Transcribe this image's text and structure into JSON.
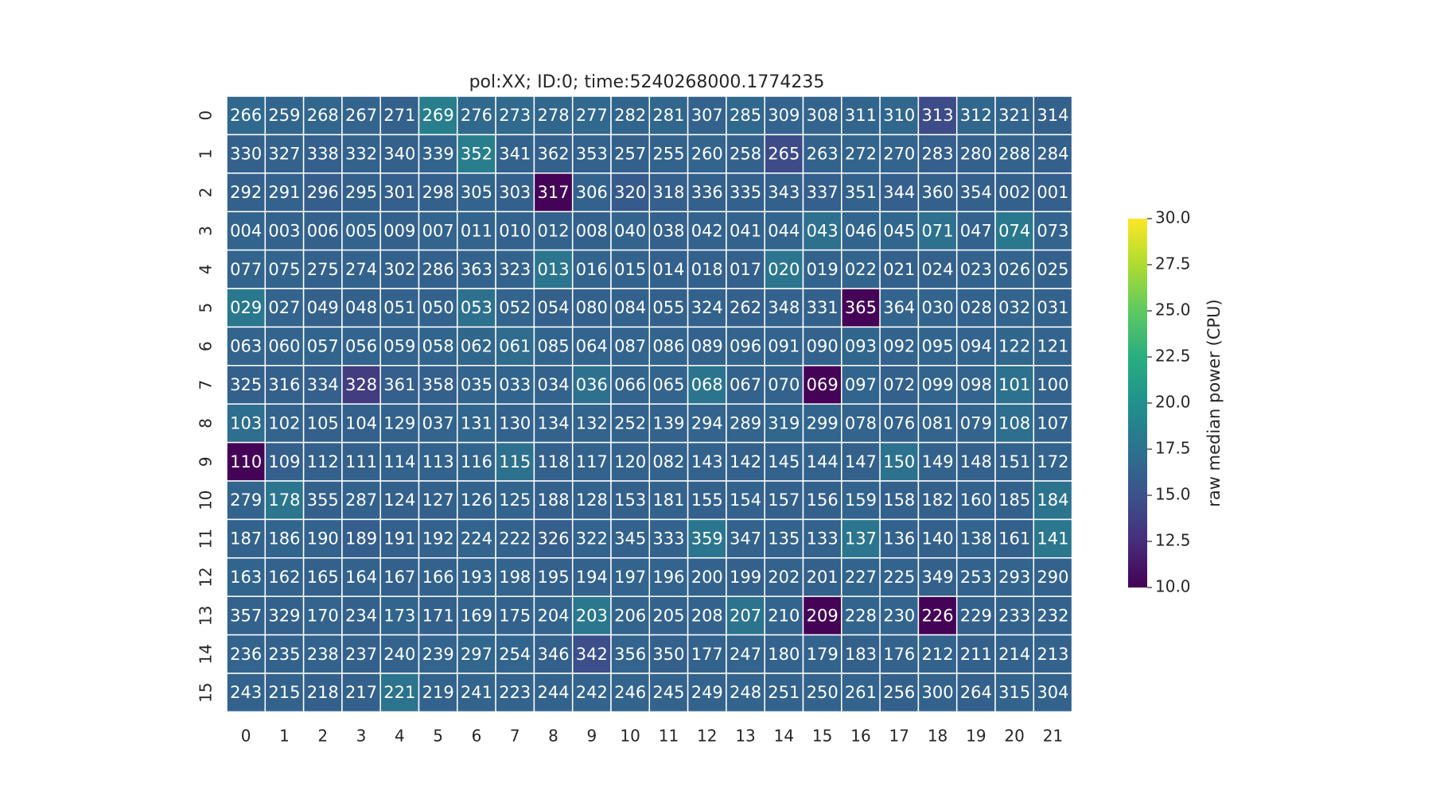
{
  "chart_data": {
    "type": "heatmap",
    "title": "pol:XX; ID:0; time:5240268000.1774235",
    "xlabel": "",
    "ylabel": "",
    "x_ticks": [
      "0",
      "1",
      "2",
      "3",
      "4",
      "5",
      "6",
      "7",
      "8",
      "9",
      "10",
      "11",
      "12",
      "13",
      "14",
      "15",
      "16",
      "17",
      "18",
      "19",
      "20",
      "21"
    ],
    "y_ticks": [
      "0",
      "1",
      "2",
      "3",
      "4",
      "5",
      "6",
      "7",
      "8",
      "9",
      "10",
      "11",
      "12",
      "13",
      "14",
      "15"
    ],
    "annotations": [
      [
        "266",
        "259",
        "268",
        "267",
        "271",
        "269",
        "276",
        "273",
        "278",
        "277",
        "282",
        "281",
        "307",
        "285",
        "309",
        "308",
        "311",
        "310",
        "313",
        "312",
        "321",
        "314"
      ],
      [
        "330",
        "327",
        "338",
        "332",
        "340",
        "339",
        "352",
        "341",
        "362",
        "353",
        "257",
        "255",
        "260",
        "258",
        "265",
        "263",
        "272",
        "270",
        "283",
        "280",
        "288",
        "284"
      ],
      [
        "292",
        "291",
        "296",
        "295",
        "301",
        "298",
        "305",
        "303",
        "317",
        "306",
        "320",
        "318",
        "336",
        "335",
        "343",
        "337",
        "351",
        "344",
        "360",
        "354",
        "002",
        "001"
      ],
      [
        "004",
        "003",
        "006",
        "005",
        "009",
        "007",
        "011",
        "010",
        "012",
        "008",
        "040",
        "038",
        "042",
        "041",
        "044",
        "043",
        "046",
        "045",
        "071",
        "047",
        "074",
        "073"
      ],
      [
        "077",
        "075",
        "275",
        "274",
        "302",
        "286",
        "363",
        "323",
        "013",
        "016",
        "015",
        "014",
        "018",
        "017",
        "020",
        "019",
        "022",
        "021",
        "024",
        "023",
        "026",
        "025"
      ],
      [
        "029",
        "027",
        "049",
        "048",
        "051",
        "050",
        "053",
        "052",
        "054",
        "080",
        "084",
        "055",
        "324",
        "262",
        "348",
        "331",
        "365",
        "364",
        "030",
        "028",
        "032",
        "031"
      ],
      [
        "063",
        "060",
        "057",
        "056",
        "059",
        "058",
        "062",
        "061",
        "085",
        "064",
        "087",
        "086",
        "089",
        "096",
        "091",
        "090",
        "093",
        "092",
        "095",
        "094",
        "122",
        "121"
      ],
      [
        "325",
        "316",
        "334",
        "328",
        "361",
        "358",
        "035",
        "033",
        "034",
        "036",
        "066",
        "065",
        "068",
        "067",
        "070",
        "069",
        "097",
        "072",
        "099",
        "098",
        "101",
        "100"
      ],
      [
        "103",
        "102",
        "105",
        "104",
        "129",
        "037",
        "131",
        "130",
        "134",
        "132",
        "252",
        "139",
        "294",
        "289",
        "319",
        "299",
        "078",
        "076",
        "081",
        "079",
        "108",
        "107"
      ],
      [
        "110",
        "109",
        "112",
        "111",
        "114",
        "113",
        "116",
        "115",
        "118",
        "117",
        "120",
        "082",
        "143",
        "142",
        "145",
        "144",
        "147",
        "150",
        "149",
        "148",
        "151",
        "172"
      ],
      [
        "279",
        "178",
        "355",
        "287",
        "124",
        "127",
        "126",
        "125",
        "188",
        "128",
        "153",
        "181",
        "155",
        "154",
        "157",
        "156",
        "159",
        "158",
        "182",
        "160",
        "185",
        "184"
      ],
      [
        "187",
        "186",
        "190",
        "189",
        "191",
        "192",
        "224",
        "222",
        "326",
        "322",
        "345",
        "333",
        "359",
        "347",
        "135",
        "133",
        "137",
        "136",
        "140",
        "138",
        "161",
        "141"
      ],
      [
        "163",
        "162",
        "165",
        "164",
        "167",
        "166",
        "193",
        "198",
        "195",
        "194",
        "197",
        "196",
        "200",
        "199",
        "202",
        "201",
        "227",
        "225",
        "349",
        "253",
        "293",
        "290"
      ],
      [
        "357",
        "329",
        "170",
        "234",
        "173",
        "171",
        "169",
        "175",
        "204",
        "203",
        "206",
        "205",
        "208",
        "207",
        "210",
        "209",
        "228",
        "230",
        "226",
        "229",
        "233",
        "232"
      ],
      [
        "236",
        "235",
        "238",
        "237",
        "240",
        "239",
        "297",
        "254",
        "346",
        "342",
        "356",
        "350",
        "177",
        "247",
        "180",
        "179",
        "183",
        "176",
        "212",
        "211",
        "214",
        "213"
      ],
      [
        "243",
        "215",
        "218",
        "217",
        "221",
        "219",
        "241",
        "223",
        "244",
        "242",
        "246",
        "245",
        "249",
        "248",
        "251",
        "250",
        "261",
        "256",
        "300",
        "264",
        "315",
        "304"
      ]
    ],
    "values": [
      [
        16.8,
        16.5,
        16.6,
        16.4,
        16.2,
        18.5,
        16.7,
        16.9,
        16.6,
        16.7,
        16.5,
        16.6,
        16.3,
        16.7,
        16.4,
        16.4,
        16.5,
        16.6,
        14.5,
        16.6,
        16.4,
        16.2
      ],
      [
        16.2,
        16.3,
        16.0,
        16.3,
        16.1,
        16.4,
        18.5,
        16.3,
        16.1,
        16.3,
        16.2,
        16.3,
        16.4,
        16.2,
        14.5,
        16.3,
        16.5,
        16.4,
        16.0,
        16.2,
        16.3,
        16.1
      ],
      [
        16.2,
        16.3,
        15.9,
        16.1,
        16.0,
        16.1,
        16.4,
        16.2,
        10.1,
        16.3,
        15.6,
        16.0,
        16.1,
        16.2,
        16.1,
        16.0,
        16.3,
        16.0,
        16.2,
        16.1,
        16.2,
        16.0
      ],
      [
        16.4,
        16.3,
        16.2,
        16.4,
        16.2,
        16.4,
        16.4,
        16.3,
        16.3,
        16.2,
        16.4,
        16.1,
        16.3,
        16.3,
        16.5,
        17.4,
        16.5,
        16.6,
        17.4,
        16.3,
        18.0,
        16.4
      ],
      [
        16.4,
        16.4,
        16.2,
        16.3,
        16.2,
        16.2,
        16.3,
        16.3,
        17.8,
        16.4,
        16.3,
        16.2,
        16.2,
        16.1,
        17.8,
        16.3,
        16.4,
        16.2,
        16.2,
        16.3,
        16.4,
        16.2
      ],
      [
        18.0,
        16.4,
        16.2,
        16.2,
        16.3,
        16.3,
        17.4,
        16.4,
        16.2,
        16.2,
        16.3,
        16.2,
        16.3,
        16.2,
        16.3,
        16.2,
        10.1,
        16.4,
        16.4,
        16.3,
        16.4,
        16.3
      ],
      [
        16.4,
        16.4,
        16.5,
        16.4,
        16.4,
        16.5,
        16.6,
        17.0,
        16.5,
        16.4,
        16.4,
        16.4,
        16.3,
        16.4,
        16.4,
        16.3,
        16.6,
        16.3,
        16.5,
        16.4,
        16.6,
        16.4
      ],
      [
        16.1,
        16.1,
        16.0,
        13.5,
        16.0,
        16.1,
        16.4,
        16.5,
        16.3,
        17.4,
        16.4,
        16.4,
        17.7,
        16.3,
        16.3,
        10.1,
        16.5,
        16.2,
        16.5,
        16.4,
        17.5,
        16.3
      ],
      [
        17.2,
        16.4,
        16.2,
        16.2,
        16.3,
        16.4,
        16.6,
        16.3,
        16.3,
        16.4,
        16.3,
        16.3,
        16.4,
        16.4,
        16.6,
        16.5,
        16.4,
        16.3,
        16.4,
        16.4,
        17.2,
        16.3
      ],
      [
        10.1,
        16.0,
        16.2,
        16.2,
        16.3,
        16.3,
        16.5,
        17.4,
        16.2,
        16.3,
        16.3,
        16.3,
        16.3,
        16.2,
        16.3,
        16.3,
        16.2,
        17.5,
        16.3,
        16.2,
        16.3,
        16.4
      ],
      [
        16.4,
        17.8,
        16.1,
        16.3,
        16.1,
        16.2,
        16.3,
        16.4,
        16.1,
        16.3,
        16.2,
        16.3,
        16.2,
        16.3,
        16.2,
        16.2,
        16.4,
        16.2,
        16.2,
        16.3,
        16.2,
        17.6
      ],
      [
        16.3,
        16.5,
        16.3,
        15.9,
        16.1,
        16.3,
        16.4,
        16.3,
        15.9,
        16.4,
        16.3,
        16.3,
        17.8,
        16.3,
        16.3,
        16.3,
        17.8,
        16.3,
        16.2,
        16.4,
        16.2,
        17.9
      ],
      [
        16.5,
        16.3,
        16.2,
        16.3,
        16.2,
        16.3,
        16.4,
        16.4,
        16.2,
        16.3,
        16.4,
        16.4,
        16.3,
        16.2,
        16.3,
        16.2,
        16.5,
        16.4,
        16.2,
        16.3,
        16.4,
        16.3
      ],
      [
        16.3,
        16.2,
        16.4,
        16.2,
        16.5,
        16.2,
        16.4,
        16.3,
        16.4,
        17.9,
        16.4,
        16.3,
        16.3,
        17.6,
        16.4,
        10.1,
        16.5,
        16.4,
        10.1,
        16.2,
        16.3,
        16.3
      ],
      [
        16.4,
        16.3,
        16.3,
        16.2,
        16.3,
        16.4,
        16.6,
        16.5,
        16.2,
        14.8,
        16.4,
        16.2,
        16.3,
        16.4,
        16.3,
        16.3,
        16.2,
        16.3,
        16.3,
        16.2,
        16.3,
        16.3
      ],
      [
        16.3,
        16.3,
        16.2,
        16.2,
        17.6,
        16.3,
        16.4,
        16.4,
        16.3,
        16.4,
        16.4,
        16.3,
        16.3,
        16.4,
        16.3,
        16.3,
        16.4,
        16.2,
        16.3,
        16.2,
        16.4,
        16.3
      ]
    ],
    "colorbar": {
      "label": "raw median power (CPU)",
      "vmin": 10.0,
      "vmax": 30.0,
      "ticks": [
        "10.0",
        "12.5",
        "15.0",
        "17.5",
        "20.0",
        "22.5",
        "25.0",
        "27.5",
        "30.0"
      ],
      "colormap": "viridis"
    },
    "grid": false,
    "legend": "none"
  }
}
